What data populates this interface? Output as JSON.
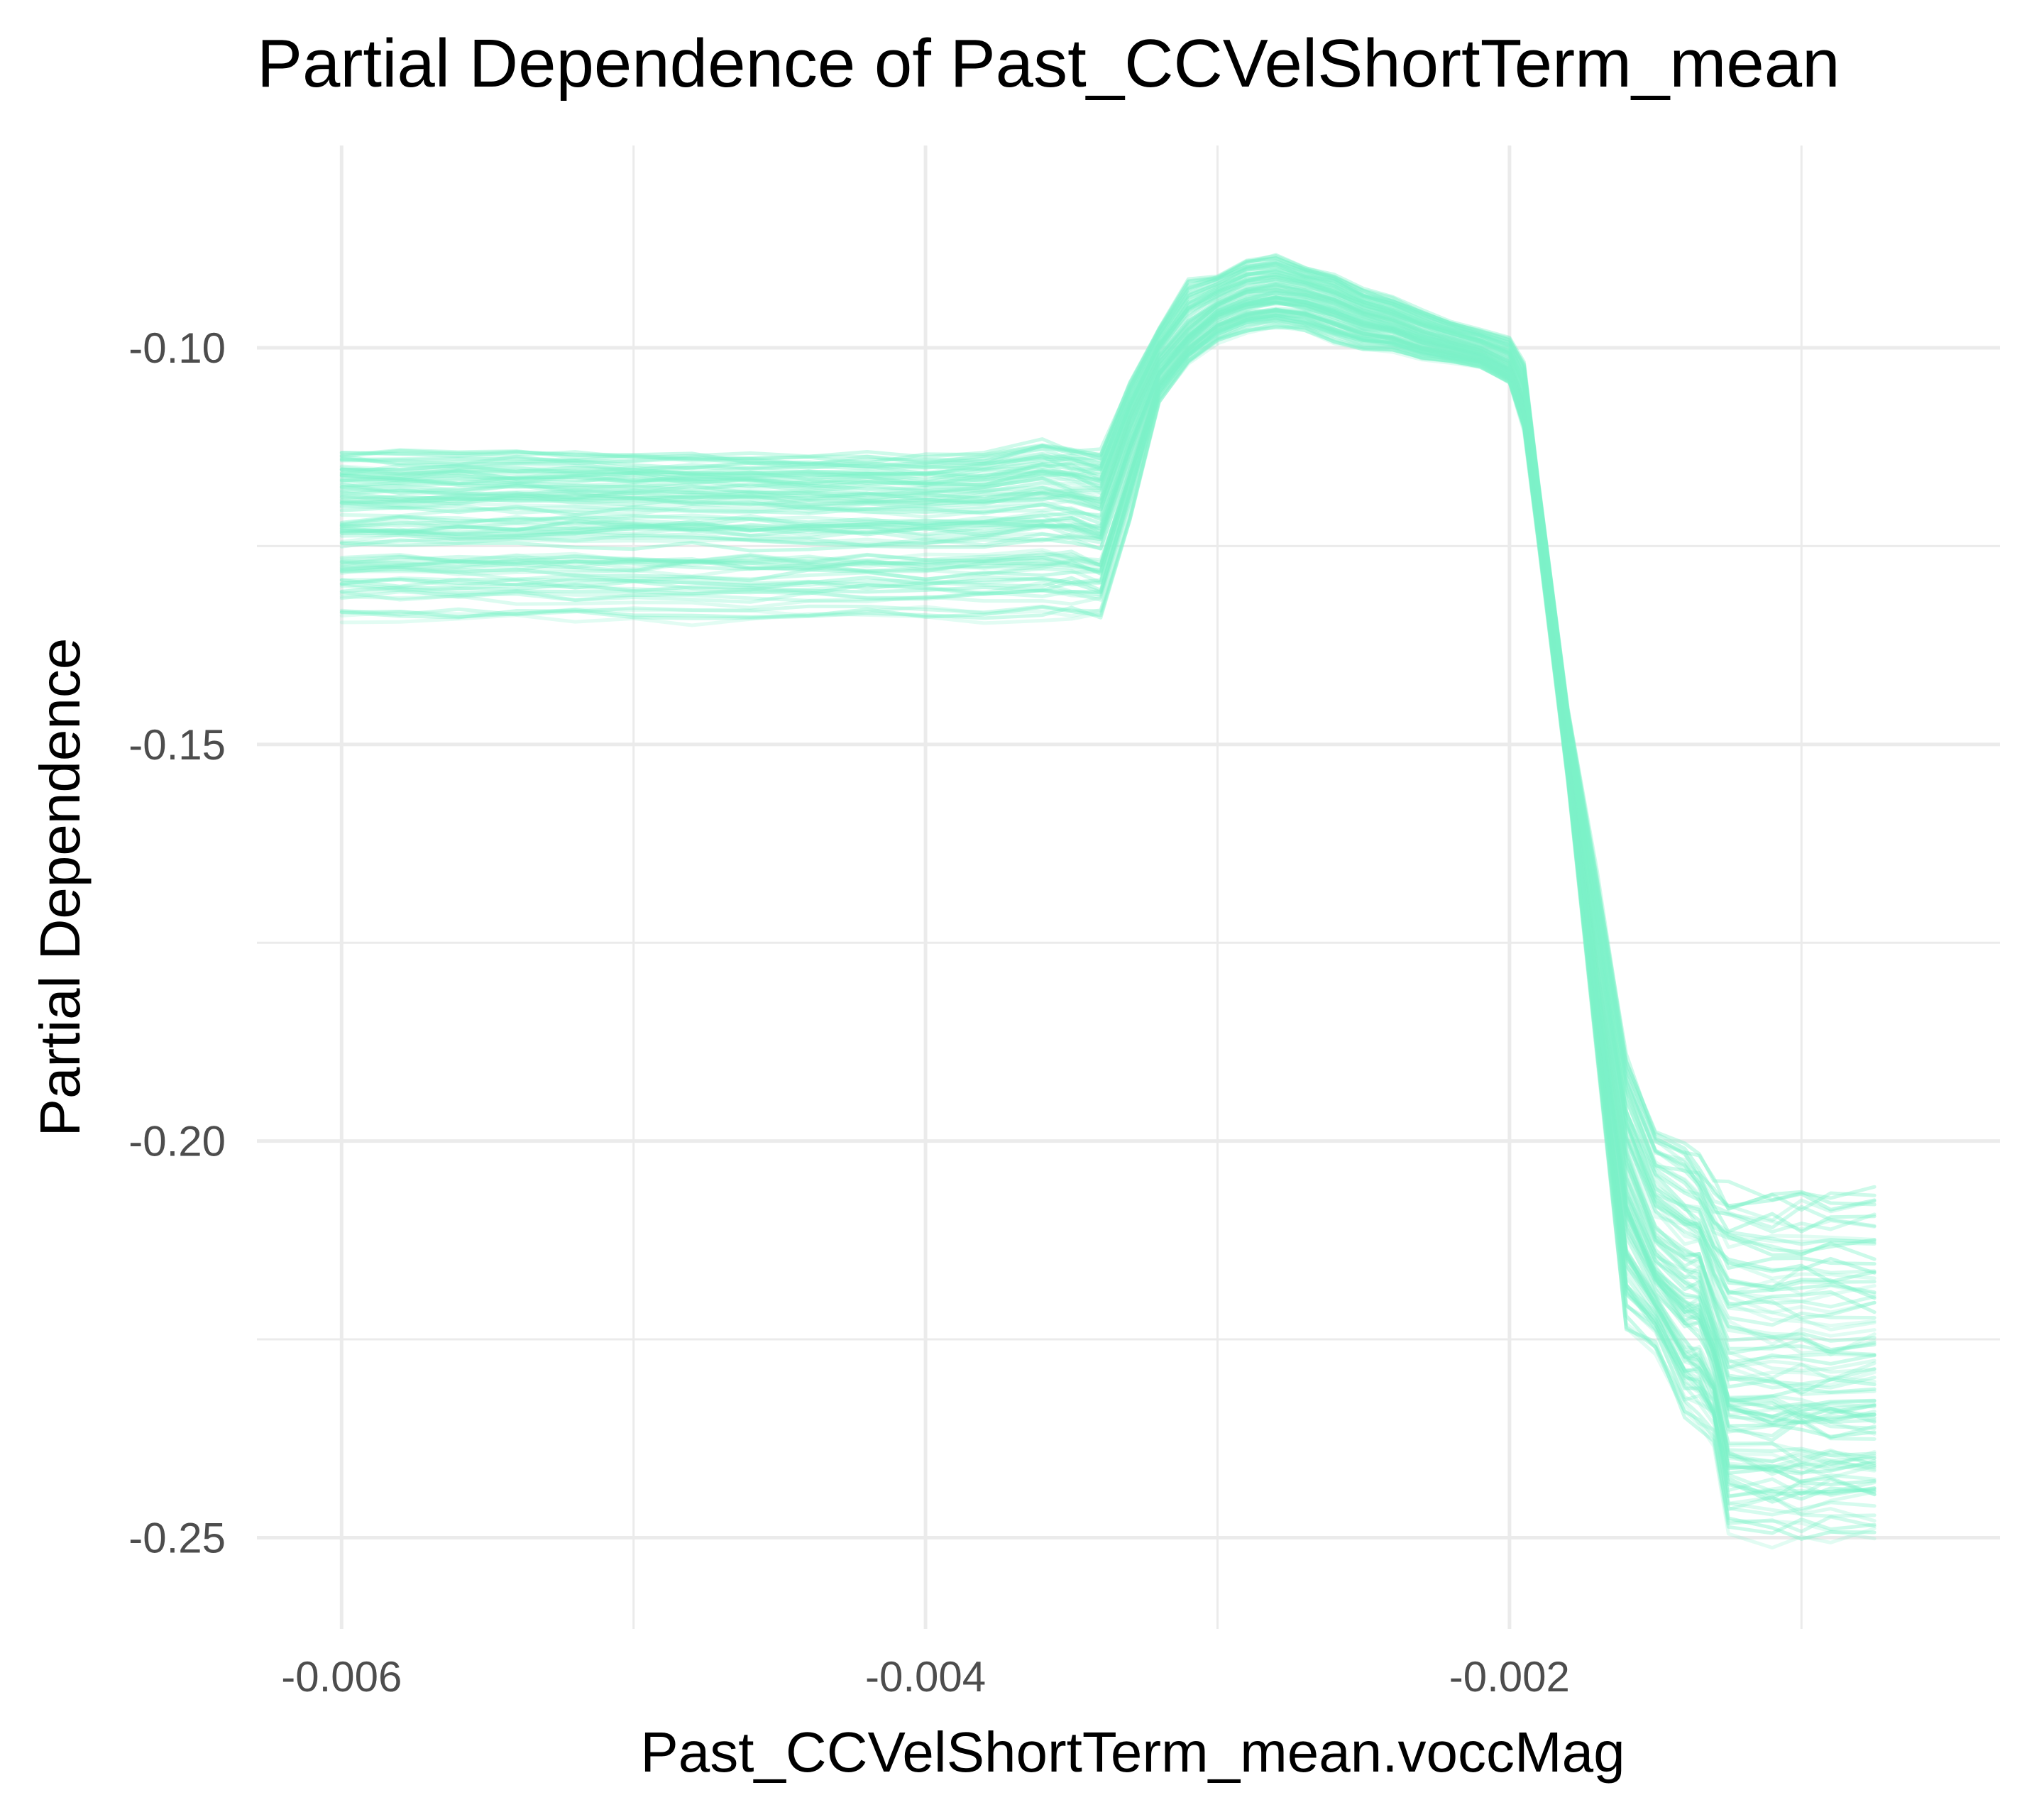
{
  "chart_data": {
    "type": "line",
    "title": "Partial Dependence of Past_CCVelShortTerm_mean",
    "xlabel": "Past_CCVelShortTerm_mean.voccMag",
    "ylabel": "Partial Dependence",
    "xlim": [
      -0.00629,
      -0.00032
    ],
    "ylim": [
      -0.2615,
      -0.0745
    ],
    "x_ticks": [
      -0.006,
      -0.004,
      -0.002
    ],
    "x_tick_labels": [
      "-0.006",
      "-0.004",
      "-0.002"
    ],
    "x_minor_ticks": [
      -0.005,
      -0.003,
      -0.001
    ],
    "y_ticks": [
      -0.1,
      -0.15,
      -0.2,
      -0.25
    ],
    "y_tick_labels": [
      "-0.10",
      "-0.15",
      "-0.20",
      "-0.25"
    ],
    "y_minor_ticks": [
      -0.125,
      -0.175,
      -0.225
    ],
    "grid": true,
    "legend": "none",
    "line_color": "#7df2c9",
    "n_curves": 100,
    "x": [
      -0.006,
      -0.0058,
      -0.0056,
      -0.0054,
      -0.0052,
      -0.005,
      -0.0048,
      -0.0046,
      -0.0044,
      -0.0042,
      -0.004,
      -0.0038,
      -0.0036,
      -0.0035,
      -0.0034,
      -0.0033,
      -0.0032,
      -0.0031,
      -0.003,
      -0.0029,
      -0.0028,
      -0.0027,
      -0.0026,
      -0.0025,
      -0.0024,
      -0.0023,
      -0.0022,
      -0.0021,
      -0.002,
      -0.00195,
      -0.0019,
      -0.0018,
      -0.0017,
      -0.0016,
      -0.0015,
      -0.0014,
      -0.00135,
      -0.0013,
      -0.00125,
      -0.0011,
      -0.001,
      -0.0009,
      -0.00075
    ],
    "mean_curve": [
      -0.1198,
      -0.1198,
      -0.1198,
      -0.1197,
      -0.1197,
      -0.1196,
      -0.1196,
      -0.1197,
      -0.1198,
      -0.1199,
      -0.12,
      -0.1198,
      -0.119,
      -0.1195,
      -0.1205,
      -0.11,
      -0.102,
      -0.098,
      -0.095,
      -0.0935,
      -0.093,
      -0.0935,
      -0.0945,
      -0.096,
      -0.097,
      -0.0985,
      -0.0995,
      -0.1005,
      -0.1025,
      -0.1075,
      -0.121,
      -0.15,
      -0.18,
      -0.205,
      -0.2145,
      -0.2175,
      -0.2175,
      -0.2235,
      -0.229,
      -0.23,
      -0.23,
      -0.23,
      -0.23
    ],
    "envelope_lower": [
      -0.1345,
      -0.1345,
      -0.1345,
      -0.1345,
      -0.1345,
      -0.1348,
      -0.1348,
      -0.1348,
      -0.1345,
      -0.1345,
      -0.1345,
      -0.1345,
      -0.1345,
      -0.1345,
      -0.1345,
      -0.122,
      -0.107,
      -0.102,
      -0.0995,
      -0.098,
      -0.0975,
      -0.098,
      -0.0995,
      -0.1005,
      -0.1005,
      -0.1015,
      -0.102,
      -0.1025,
      -0.1045,
      -0.1105,
      -0.125,
      -0.155,
      -0.19,
      -0.2245,
      -0.2265,
      -0.2355,
      -0.237,
      -0.2385,
      -0.2505,
      -0.2505,
      -0.2505,
      -0.2505,
      -0.2505
    ],
    "envelope_upper": [
      -0.1128,
      -0.1128,
      -0.1128,
      -0.1128,
      -0.1128,
      -0.113,
      -0.113,
      -0.113,
      -0.1132,
      -0.1132,
      -0.1132,
      -0.1128,
      -0.1115,
      -0.112,
      -0.112,
      -0.104,
      -0.097,
      -0.091,
      -0.0905,
      -0.0885,
      -0.088,
      -0.0895,
      -0.0905,
      -0.0925,
      -0.0935,
      -0.095,
      -0.0965,
      -0.0975,
      -0.0985,
      -0.1015,
      -0.117,
      -0.145,
      -0.165,
      -0.188,
      -0.197,
      -0.1985,
      -0.201,
      -0.2035,
      -0.2045,
      -0.2045,
      -0.2045,
      -0.2045,
      -0.2045
    ]
  }
}
